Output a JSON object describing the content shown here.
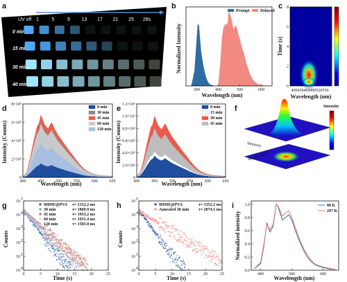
{
  "photo_a": {
    "uv_off_line1": "254nm",
    "uv_off_line2": "UV off",
    "seconds": [
      "1",
      "5",
      "9",
      "13",
      "17",
      "21",
      "25",
      "28s"
    ],
    "rows": [
      "0 min",
      "15 min",
      "30 min",
      "40 min"
    ],
    "panel_label": "a"
  },
  "chart_data": [
    {
      "id": "b",
      "type": "area",
      "panel_label": "b",
      "xlabel": "Wavelength (nm)",
      "ylabel": "Normalized Intensity",
      "xlim": [
        250,
        650
      ],
      "xticks": [
        300,
        400,
        500,
        600
      ],
      "legend": "top-right",
      "series": [
        {
          "name": "Prompt",
          "color": "#2e6da4",
          "x": [
            275,
            290,
            300,
            305,
            310,
            315,
            320,
            330,
            340,
            350,
            360,
            380
          ],
          "y": [
            0,
            0.2,
            0.62,
            0.82,
            0.8,
            0.62,
            0.45,
            0.27,
            0.14,
            0.06,
            0.02,
            0
          ]
        },
        {
          "name": "Delayed",
          "color": "#f28a82",
          "x": [
            400,
            410,
            418,
            425,
            435,
            440,
            445,
            450,
            460,
            470,
            480,
            485,
            490,
            500,
            510,
            520,
            530,
            545,
            560,
            580,
            600,
            625
          ],
          "y": [
            0,
            0.3,
            0.65,
            0.78,
            0.83,
            0.8,
            0.86,
            1.0,
            0.9,
            0.75,
            0.8,
            0.78,
            0.71,
            0.62,
            0.5,
            0.42,
            0.3,
            0.17,
            0.08,
            0.03,
            0.01,
            0
          ]
        }
      ]
    },
    {
      "id": "c",
      "type": "heatmap",
      "panel_label": "c",
      "xlabel": "Wavelength (nm)",
      "ylabel": "Time (s)",
      "xlim": [
        380,
        580
      ],
      "ylim": [
        0,
        8
      ],
      "xticks": [
        400,
        430,
        460,
        490,
        520,
        550
      ],
      "yticks": [
        0,
        2,
        4,
        6,
        8
      ],
      "peak_x": 470,
      "colormap": "jet"
    },
    {
      "id": "d",
      "type": "area",
      "panel_label": "d",
      "xlabel": "Wavelength (nm)",
      "ylabel": "Intensity (Counts)",
      "xlim": [
        400,
        650
      ],
      "ylim": [
        0,
        800000
      ],
      "xticks": [
        400,
        450,
        500,
        550,
        600,
        650
      ],
      "ytick_labels": [
        "0",
        "2×10⁵",
        "4×10⁵",
        "6×10⁵",
        "8×10⁵"
      ],
      "legend": "top-right",
      "x": [
        400,
        410,
        420,
        430,
        440,
        445,
        450,
        460,
        470,
        480,
        490,
        500,
        510,
        520,
        530,
        540,
        550,
        560,
        570,
        580,
        590,
        600,
        620,
        650
      ],
      "shape": [
        0.02,
        0.08,
        0.3,
        0.58,
        0.82,
        0.86,
        1.0,
        0.85,
        0.78,
        0.88,
        0.76,
        0.66,
        0.58,
        0.5,
        0.42,
        0.35,
        0.27,
        0.2,
        0.14,
        0.1,
        0.07,
        0.05,
        0.03,
        0.02
      ],
      "series": [
        {
          "name": "0 min",
          "color": "#1f4e9e",
          "scale": 150000
        },
        {
          "name": "30 min",
          "color": "#8c8c8c",
          "scale": 600000
        },
        {
          "name": "45 min",
          "color": "#ee5a4a",
          "scale": 680000
        },
        {
          "name": "60 min",
          "color": "#c9c9c9",
          "scale": 580000
        },
        {
          "name": "120 min",
          "color": "#a9bfe2",
          "scale": 370000
        }
      ]
    },
    {
      "id": "e",
      "type": "area",
      "panel_label": "e",
      "xlabel": "Wavelength (nm)",
      "ylabel": "Intensity (Counts)",
      "xlim": [
        400,
        650
      ],
      "ylim": [
        0,
        1200000
      ],
      "xticks": [
        400,
        450,
        500,
        550,
        600,
        650
      ],
      "ytick_labels": [
        "0",
        "2.0×10⁵",
        "4.0×10⁵",
        "6.0×10⁵",
        "8.0×10⁵",
        "1.0×10⁶",
        "1.2×10⁶"
      ],
      "legend": "top-right",
      "x": [
        400,
        410,
        420,
        430,
        440,
        445,
        450,
        460,
        470,
        480,
        490,
        500,
        510,
        520,
        530,
        540,
        550,
        560,
        570,
        580,
        590,
        600,
        620,
        650
      ],
      "shape": [
        0.02,
        0.08,
        0.3,
        0.58,
        0.82,
        0.86,
        1.0,
        0.85,
        0.78,
        0.88,
        0.76,
        0.66,
        0.58,
        0.5,
        0.42,
        0.35,
        0.27,
        0.2,
        0.14,
        0.1,
        0.07,
        0.05,
        0.03,
        0.02
      ],
      "series": [
        {
          "name": "0 min",
          "color": "#1f4e9e",
          "scale": 350000
        },
        {
          "name": "15 min",
          "color": "#ffffff",
          "scale": 420000
        },
        {
          "name": "30 min",
          "color": "#ee5a4a",
          "scale": 1000000
        },
        {
          "name": "45 min",
          "color": "#bdbdbd",
          "scale": 800000
        }
      ]
    },
    {
      "id": "g",
      "type": "scatter",
      "panel_label": "g",
      "xlabel": "Time (s)",
      "ylabel": "Counts",
      "yscale": "log",
      "xlim": [
        0,
        25
      ],
      "ylim": [
        1,
        100000
      ],
      "xticks": [
        0,
        5,
        10,
        15,
        20,
        25
      ],
      "ytick_exps": [
        0,
        1,
        2,
        3,
        4,
        5
      ],
      "legend": "top-center",
      "series": [
        {
          "name": "9HMF@PVA",
          "tau_label": "τ= 1352.2 ms",
          "color": "#1f4e9e",
          "tau": 1.352,
          "n0": 20000,
          "tmax": 14
        },
        {
          "name": "30 min",
          "tau_label": "τ= 1860.9 ms",
          "color": "#8c8c8c",
          "tau": 1.861,
          "n0": 20000,
          "tmax": 18
        },
        {
          "name": "45 min",
          "tau_label": "τ= 1953.2 ms",
          "color": "#ee5a4a",
          "tau": 1.953,
          "n0": 20000,
          "tmax": 19
        },
        {
          "name": "60 min",
          "tau_label": "τ= 1931.4 ms",
          "color": "#c9c9c9",
          "tau": 1.931,
          "n0": 20000,
          "tmax": 19
        },
        {
          "name": "120 min",
          "tau_label": "τ= 1503.0 ms",
          "color": "#a9bfe2",
          "tau": 1.503,
          "n0": 20000,
          "tmax": 16
        }
      ]
    },
    {
      "id": "h",
      "type": "scatter",
      "panel_label": "h",
      "xlabel": "Time (s)",
      "ylabel": "Counts",
      "yscale": "log",
      "xlim": [
        0,
        25
      ],
      "ylim": [
        1,
        100000
      ],
      "xticks": [
        0,
        5,
        10,
        15,
        20,
        25
      ],
      "ytick_exps": [
        0,
        1,
        2,
        3,
        4,
        5
      ],
      "legend": "top-center",
      "series": [
        {
          "name": "9HMF@PVA",
          "tau_label": "τ= 1352.2 ms",
          "color": "#1f4e9e",
          "tau": 1.352,
          "n0": 20000,
          "tmax": 14
        },
        {
          "name": "Annealed 30 min",
          "tau_label": "τ= 2874.1 ms",
          "color": "#f28a82",
          "tau": 2.874,
          "n0": 20000,
          "tmax": 25
        }
      ]
    },
    {
      "id": "i",
      "type": "line",
      "panel_label": "i",
      "xlabel": "Wavelength (nm)",
      "ylabel": "Normalized intensity",
      "xlim": [
        370,
        650
      ],
      "ylim": [
        0,
        1.05
      ],
      "xticks": [
        400,
        500,
        600
      ],
      "yticks": [
        0.0,
        0.2,
        0.4,
        0.6,
        0.8,
        1.0
      ],
      "legend": "top-right",
      "x": [
        380,
        400,
        410,
        420,
        430,
        440,
        450,
        455,
        460,
        470,
        480,
        490,
        500,
        510,
        520,
        530,
        540,
        550,
        560,
        570,
        580,
        600,
        620,
        640
      ],
      "series": [
        {
          "name": "80 K",
          "color": "#2e6da4",
          "y": [
            0.02,
            0.1,
            0.35,
            0.72,
            0.58,
            0.66,
            1.0,
            0.97,
            0.9,
            0.76,
            0.8,
            0.84,
            0.76,
            0.62,
            0.49,
            0.38,
            0.28,
            0.2,
            0.14,
            0.1,
            0.07,
            0.04,
            0.02,
            0.01
          ]
        },
        {
          "name": "297 K",
          "color": "#e8756b",
          "y": [
            0.02,
            0.12,
            0.38,
            0.7,
            0.62,
            0.69,
            0.99,
            0.98,
            0.93,
            0.82,
            0.87,
            0.9,
            0.8,
            0.66,
            0.53,
            0.41,
            0.31,
            0.23,
            0.16,
            0.11,
            0.08,
            0.05,
            0.03,
            0.01
          ]
        }
      ]
    },
    {
      "id": "f",
      "type": "heatmap",
      "panel_label": "f",
      "zlabel": "Intensity",
      "axis_label_y": "Intensity",
      "axis_label_x": "Wavelength",
      "colormap": "jet"
    }
  ]
}
